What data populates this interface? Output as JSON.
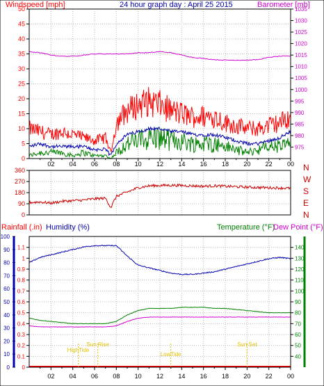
{
  "title": "24 hour graph day : April 25 2015",
  "colors": {
    "wind": "#ff0000",
    "gust": "#ff0000",
    "avgwind": "#0000b0",
    "dir": "#cc0000",
    "baro": "#d000d0",
    "rain": "#ff0000",
    "humidity": "#0000b0",
    "temp": "#008000",
    "dew": "#d000d0",
    "tide": "#e0c000",
    "grid": "#b8b8b8"
  },
  "x_ticks": [
    "02",
    "04",
    "06",
    "08",
    "10",
    "12",
    "14",
    "16",
    "18",
    "20",
    "22",
    "00"
  ],
  "chart_data": [
    {
      "type": "line",
      "title": "24 hour graph day : April 25 2015",
      "ylabel_left": "Windspeed [mph]",
      "ylabel_right": "Barometer [mb]",
      "ylim_left": [
        0,
        50
      ],
      "ylim_right": [
        970,
        1035
      ],
      "yticks_left": [
        "0",
        "5",
        "10",
        "15",
        "20",
        "25",
        "30",
        "35",
        "40",
        "45",
        "50"
      ],
      "yticks_right": [
        "975",
        "980",
        "985",
        "990",
        "995",
        "1000",
        "1005",
        "1010",
        "1015",
        "1020",
        "1025",
        "1030",
        "1035"
      ],
      "x": [
        0,
        1,
        2,
        3,
        4,
        5,
        6,
        7,
        7.5,
        8,
        9,
        10,
        11,
        12,
        13,
        14,
        15,
        16,
        17,
        18,
        19,
        20,
        21,
        22,
        23,
        24
      ],
      "series": [
        {
          "name": "Windspeed (gust)",
          "values": [
            10,
            9,
            8,
            9,
            8,
            7,
            6,
            7,
            2,
            12,
            16,
            18,
            19,
            18,
            16,
            15,
            14,
            14,
            14,
            12,
            11,
            10,
            10,
            11,
            12,
            14
          ]
        },
        {
          "name": "Windspeed (avg)",
          "values": [
            4,
            5,
            4,
            4,
            4,
            4,
            3,
            3,
            1,
            5,
            8,
            9,
            10,
            10,
            9,
            9,
            8,
            8,
            8,
            7,
            6,
            5,
            5,
            6,
            7,
            9
          ]
        },
        {
          "name": "Windspeed (min)",
          "values": [
            1,
            2,
            2,
            2,
            1,
            2,
            1,
            1,
            0,
            2,
            5,
            6,
            7,
            7,
            6,
            6,
            5,
            5,
            5,
            4,
            3,
            2,
            3,
            4,
            4,
            5
          ]
        },
        {
          "name": "Barometer",
          "values": [
            1016.5,
            1016,
            1015,
            1014.5,
            1014.5,
            1015,
            1015.5,
            1015.5,
            1015.5,
            1015.5,
            1015.5,
            1016,
            1016,
            1016.5,
            1016,
            1015,
            1014,
            1013.5,
            1013,
            1012.8,
            1012.8,
            1012.8,
            1013,
            1014,
            1014.5,
            1014.5
          ]
        }
      ]
    },
    {
      "type": "line",
      "ylabel_right": [
        "N",
        "W",
        "S",
        "E",
        "N"
      ],
      "ylim": [
        0,
        360
      ],
      "yticks": [
        "0",
        "90",
        "180",
        "270",
        "360"
      ],
      "x": [
        0,
        1,
        2,
        3,
        4,
        5,
        6,
        7,
        7.5,
        8,
        9,
        10,
        11,
        12,
        13,
        14,
        15,
        16,
        17,
        18,
        19,
        20,
        21,
        22,
        23,
        24
      ],
      "series": [
        {
          "name": "Wind direction",
          "values": [
            100,
            105,
            95,
            110,
            115,
            120,
            130,
            135,
            60,
            150,
            185,
            220,
            235,
            238,
            240,
            238,
            235,
            232,
            235,
            232,
            228,
            225,
            222,
            220,
            218,
            215
          ]
        }
      ]
    },
    {
      "type": "line",
      "ylabel_left": "Rainfall (.in)",
      "ylabel_left2": "Humidity (%)",
      "ylabel_right": "Temperature (°F)",
      "ylabel_right2": "Dew Point (°F)",
      "ylim_left": [
        0,
        100
      ],
      "ylim_left2": [
        0,
        1.2
      ],
      "ylim_right": [
        30,
        150
      ],
      "yticks_left": [
        "0",
        "10",
        "20",
        "30",
        "40",
        "50",
        "60",
        "70",
        "80",
        "90",
        "100"
      ],
      "yticks_left2": [
        "0",
        "0.1",
        "0.2",
        "0.3",
        "0.4",
        "0.5",
        "0.6",
        "0.7",
        "0.8",
        "0.9",
        "1",
        "1.1"
      ],
      "yticks_right": [
        "40",
        "50",
        "60",
        "70",
        "80",
        "90",
        "100",
        "110",
        "120",
        "130",
        "140"
      ],
      "x": [
        0,
        1,
        2,
        3,
        4,
        5,
        6,
        7,
        8,
        9,
        10,
        11,
        12,
        13,
        14,
        15,
        16,
        17,
        18,
        19,
        20,
        21,
        22,
        23,
        24
      ],
      "series": [
        {
          "name": "Humidity",
          "values": [
            80,
            84,
            86,
            88,
            90,
            92,
            93,
            93,
            93,
            85,
            78,
            76,
            74,
            72,
            71,
            71,
            72,
            73,
            75,
            77,
            79,
            81,
            83,
            84,
            83
          ]
        },
        {
          "name": "Temperature",
          "values": [
            75,
            73,
            72,
            71,
            70,
            70,
            70,
            70,
            72,
            78,
            82,
            84,
            84,
            84,
            85,
            85,
            85,
            84,
            84,
            83,
            82,
            81,
            80,
            80,
            80
          ]
        },
        {
          "name": "Dew Point",
          "values": [
            68,
            67,
            67,
            67,
            67,
            67,
            67,
            67,
            68,
            72,
            75,
            76,
            76,
            76,
            76,
            76,
            76,
            76,
            76,
            76,
            76,
            76,
            76,
            76,
            76
          ]
        },
        {
          "name": "Rainfall",
          "values": [
            0,
            0,
            0,
            0,
            0,
            0,
            0,
            0,
            0,
            0,
            0,
            0,
            0,
            0,
            0,
            0,
            0,
            0,
            0,
            0,
            0,
            0,
            0,
            0,
            0
          ]
        }
      ],
      "annotations": [
        {
          "label": "HighTide",
          "x": 4.5
        },
        {
          "label": "Sun Rise",
          "x": 6.3
        },
        {
          "label": "LowTide",
          "x": 13.0
        },
        {
          "label": "Sun Set",
          "x": 20.0
        }
      ]
    }
  ]
}
